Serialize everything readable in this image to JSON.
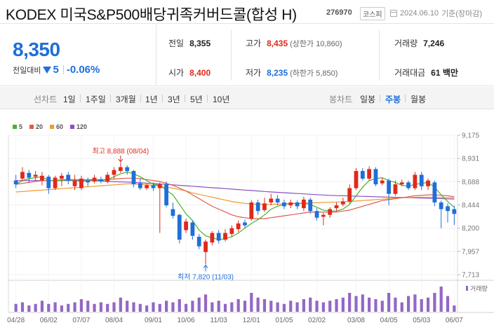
{
  "header": {
    "title": "KODEX 미국S&P500배당귀족커버드콜(합성 H)",
    "code": "276970",
    "market": "코스피",
    "date": "2024.06.10",
    "date_suffix": "기준(장마감)"
  },
  "price": {
    "current": "8,350",
    "change_label": "전일대비",
    "change": "5",
    "change_pct": "-0.06%"
  },
  "stats": {
    "prev_label": "전일",
    "prev": "8,355",
    "high_label": "고가",
    "high": "8,435",
    "upper_limit": "(상한가 10,860)",
    "volume_label": "거래량",
    "volume": "7,246",
    "open_label": "시가",
    "open": "8,400",
    "low_label": "저가",
    "low": "8,235",
    "lower_limit": "(하한가 5,850)",
    "amount_label": "거래대금",
    "amount": "61 백만"
  },
  "tabs": {
    "period_label": "선차트",
    "periods": [
      "1일",
      "1주일",
      "3개월",
      "1년",
      "3년",
      "5년",
      "10년"
    ],
    "candle_label": "봉차트",
    "candles": [
      "일봉",
      "주봉",
      "월봉"
    ],
    "active_candle": "주봉"
  },
  "legend": [
    {
      "name": "5",
      "color": "#4caf2e"
    },
    {
      "name": "20",
      "color": "#e05a4e"
    },
    {
      "name": "60",
      "color": "#f09a2e"
    },
    {
      "name": "120",
      "color": "#8a4fc6"
    }
  ],
  "chart_data": {
    "type": "candlestick",
    "interval": "weekly",
    "y_ticks": [
      "9,175",
      "8,931",
      "8,688",
      "8,444",
      "8,200",
      "7,957",
      "7,713"
    ],
    "ylim": [
      7713,
      9175
    ],
    "x_ticks": [
      "04/28",
      "06/02",
      "07/07",
      "08/04",
      "09/01",
      "10/06",
      "11/03",
      "12/01",
      "01/05",
      "02/02",
      "03/08",
      "04/05",
      "05/03",
      "06/07"
    ],
    "high_annotation": "최고 8,888 (08/04)",
    "low_annotation": "최저 7,820 (11/03)",
    "volume_label": "거래량",
    "up_color": "#e0291b",
    "down_color": "#1e6fd9",
    "candles": [
      {
        "o": 8700,
        "c": 8660,
        "h": 8760,
        "l": 8620
      },
      {
        "o": 8720,
        "c": 8790,
        "h": 8840,
        "l": 8690
      },
      {
        "o": 8780,
        "c": 8730,
        "h": 8810,
        "l": 8680
      },
      {
        "o": 8740,
        "c": 8760,
        "h": 8800,
        "l": 8700
      },
      {
        "o": 8700,
        "c": 8750,
        "h": 8790,
        "l": 8650
      },
      {
        "o": 8740,
        "c": 8620,
        "h": 8760,
        "l": 8560
      },
      {
        "o": 8620,
        "c": 8730,
        "h": 8750,
        "l": 8600
      },
      {
        "o": 8720,
        "c": 8750,
        "h": 8780,
        "l": 8640
      },
      {
        "o": 8760,
        "c": 8700,
        "h": 8790,
        "l": 8660
      },
      {
        "o": 8640,
        "c": 8700,
        "h": 8760,
        "l": 8600
      },
      {
        "o": 8620,
        "c": 8720,
        "h": 8750,
        "l": 8600
      },
      {
        "o": 8700,
        "c": 8680,
        "h": 8730,
        "l": 8640
      },
      {
        "o": 8690,
        "c": 8730,
        "h": 8760,
        "l": 8670
      },
      {
        "o": 8710,
        "c": 8690,
        "h": 8740,
        "l": 8670
      },
      {
        "o": 8690,
        "c": 8760,
        "h": 8790,
        "l": 8670
      },
      {
        "o": 8760,
        "c": 8810,
        "h": 8840,
        "l": 8720
      },
      {
        "o": 8800,
        "c": 8840,
        "h": 8888,
        "l": 8780
      },
      {
        "o": 8840,
        "c": 8800,
        "h": 8860,
        "l": 8760
      },
      {
        "o": 8800,
        "c": 8660,
        "h": 8810,
        "l": 8630
      },
      {
        "o": 8670,
        "c": 8620,
        "h": 8720,
        "l": 8600
      },
      {
        "o": 8620,
        "c": 8650,
        "h": 8670,
        "l": 8600
      },
      {
        "o": 8650,
        "c": 8620,
        "h": 8680,
        "l": 8590
      },
      {
        "o": 8620,
        "c": 8660,
        "h": 8680,
        "l": 8150
      },
      {
        "o": 8660,
        "c": 8440,
        "h": 8690,
        "l": 8420
      },
      {
        "o": 8400,
        "c": 8330,
        "h": 8470,
        "l": 8300
      },
      {
        "o": 8340,
        "c": 8080,
        "h": 8350,
        "l": 8040
      },
      {
        "o": 8180,
        "c": 8270,
        "h": 8300,
        "l": 8150
      },
      {
        "o": 8260,
        "c": 8120,
        "h": 8280,
        "l": 8080
      },
      {
        "o": 8110,
        "c": 8010,
        "h": 8140,
        "l": 7980
      },
      {
        "o": 7950,
        "c": 8060,
        "h": 8080,
        "l": 7820
      },
      {
        "o": 8050,
        "c": 8150,
        "h": 8170,
        "l": 8020
      },
      {
        "o": 8150,
        "c": 8070,
        "h": 8180,
        "l": 8040
      },
      {
        "o": 8080,
        "c": 8150,
        "h": 8190,
        "l": 8060
      },
      {
        "o": 8140,
        "c": 8200,
        "h": 8230,
        "l": 8110
      },
      {
        "o": 8190,
        "c": 8250,
        "h": 8280,
        "l": 8160
      },
      {
        "o": 8260,
        "c": 8230,
        "h": 8290,
        "l": 8200
      },
      {
        "o": 8300,
        "c": 8470,
        "h": 8490,
        "l": 8280
      },
      {
        "o": 8470,
        "c": 8380,
        "h": 8500,
        "l": 8340
      },
      {
        "o": 8390,
        "c": 8460,
        "h": 8520,
        "l": 8370
      },
      {
        "o": 8470,
        "c": 8510,
        "h": 8560,
        "l": 8440
      },
      {
        "o": 8510,
        "c": 8470,
        "h": 8550,
        "l": 8440
      },
      {
        "o": 8470,
        "c": 8430,
        "h": 8500,
        "l": 8400
      },
      {
        "o": 8440,
        "c": 8470,
        "h": 8500,
        "l": 8410
      },
      {
        "o": 8470,
        "c": 8430,
        "h": 8490,
        "l": 8400
      },
      {
        "o": 8410,
        "c": 8500,
        "h": 8530,
        "l": 8380
      },
      {
        "o": 8500,
        "c": 8380,
        "h": 8520,
        "l": 8350
      },
      {
        "o": 8380,
        "c": 8310,
        "h": 8410,
        "l": 8280
      },
      {
        "o": 8320,
        "c": 8340,
        "h": 8360,
        "l": 8230
      },
      {
        "o": 8340,
        "c": 8400,
        "h": 8420,
        "l": 8310
      },
      {
        "o": 8410,
        "c": 8440,
        "h": 8470,
        "l": 8380
      },
      {
        "o": 8450,
        "c": 8480,
        "h": 8520,
        "l": 8430
      },
      {
        "o": 8480,
        "c": 8620,
        "h": 8660,
        "l": 8460
      },
      {
        "o": 8620,
        "c": 8800,
        "h": 8830,
        "l": 8600
      },
      {
        "o": 8800,
        "c": 8720,
        "h": 8830,
        "l": 8700
      },
      {
        "o": 8720,
        "c": 8820,
        "h": 8850,
        "l": 8700
      },
      {
        "o": 8820,
        "c": 8660,
        "h": 8840,
        "l": 8640
      },
      {
        "o": 8670,
        "c": 8700,
        "h": 8730,
        "l": 8650
      },
      {
        "o": 8700,
        "c": 8560,
        "h": 8720,
        "l": 8440
      },
      {
        "o": 8560,
        "c": 8660,
        "h": 8700,
        "l": 8540
      },
      {
        "o": 8660,
        "c": 8680,
        "h": 8710,
        "l": 8640
      },
      {
        "o": 8680,
        "c": 8620,
        "h": 8700,
        "l": 8600
      },
      {
        "o": 8620,
        "c": 8760,
        "h": 8790,
        "l": 8600
      },
      {
        "o": 8760,
        "c": 8640,
        "h": 8790,
        "l": 8600
      },
      {
        "o": 8640,
        "c": 8700,
        "h": 8720,
        "l": 8600
      },
      {
        "o": 8680,
        "c": 8470,
        "h": 8700,
        "l": 8430
      },
      {
        "o": 8470,
        "c": 8400,
        "h": 8490,
        "l": 8200
      },
      {
        "o": 8430,
        "c": 8380,
        "h": 8460,
        "l": 8260
      },
      {
        "o": 8400,
        "c": 8350,
        "h": 8435,
        "l": 8235
      }
    ],
    "ma5": [
      8660,
      8700,
      8720,
      8730,
      8740,
      8700,
      8700,
      8700,
      8710,
      8700,
      8690,
      8700,
      8710,
      8700,
      8710,
      8740,
      8770,
      8790,
      8770,
      8740,
      8700,
      8660,
      8650,
      8600,
      8550,
      8450,
      8350,
      8280,
      8180,
      8120,
      8100,
      8080,
      8090,
      8110,
      8150,
      8200,
      8250,
      8290,
      8340,
      8400,
      8430,
      8450,
      8460,
      8460,
      8460,
      8450,
      8420,
      8390,
      8380,
      8380,
      8400,
      8450,
      8540,
      8630,
      8700,
      8720,
      8730,
      8700,
      8680,
      8650,
      8640,
      8660,
      8670,
      8680,
      8630,
      8550,
      8480,
      8420
    ],
    "ma20": [
      8660,
      8670,
      8680,
      8690,
      8700,
      8700,
      8700,
      8710,
      8710,
      8710,
      8710,
      8710,
      8710,
      8710,
      8710,
      8715,
      8720,
      8725,
      8725,
      8720,
      8710,
      8700,
      8690,
      8670,
      8650,
      8620,
      8590,
      8550,
      8510,
      8470,
      8430,
      8400,
      8370,
      8340,
      8320,
      8310,
      8300,
      8300,
      8300,
      8310,
      8320,
      8330,
      8340,
      8350,
      8360,
      8370,
      8370,
      8370,
      8370,
      8370,
      8380,
      8390,
      8410,
      8430,
      8450,
      8470,
      8490,
      8500,
      8510,
      8520,
      8530,
      8540,
      8545,
      8550,
      8550,
      8545,
      8540,
      8530
    ],
    "ma60": [
      8580,
      8585,
      8590,
      8595,
      8600,
      8605,
      8610,
      8615,
      8620,
      8625,
      8630,
      8635,
      8640,
      8645,
      8650,
      8655,
      8660,
      8665,
      8665,
      8660,
      8655,
      8650,
      8640,
      8630,
      8620,
      8605,
      8590,
      8570,
      8555,
      8540,
      8525,
      8510,
      8495,
      8480,
      8470,
      8460,
      8455,
      8450,
      8450,
      8450,
      8452,
      8455,
      8458,
      8460,
      8462,
      8465,
      8467,
      8470,
      8472,
      8475,
      8478,
      8480,
      8485,
      8490,
      8495,
      8500,
      8505,
      8510,
      8515,
      8520,
      8522,
      8524,
      8525,
      8525,
      8524,
      8522,
      8520,
      8518
    ],
    "ma120": [
      8700,
      8700,
      8700,
      8700,
      8700,
      8700,
      8700,
      8700,
      8700,
      8700,
      8700,
      8700,
      8698,
      8695,
      8690,
      8688,
      8686,
      8684,
      8680,
      8676,
      8672,
      8668,
      8664,
      8660,
      8655,
      8650,
      8645,
      8640,
      8635,
      8630,
      8625,
      8620,
      8615,
      8610,
      8605,
      8600,
      8595,
      8590,
      8585,
      8580,
      8576,
      8572,
      8568,
      8564,
      8560,
      8556,
      8552,
      8548,
      8545,
      8542,
      8540,
      8538,
      8536,
      8534,
      8532,
      8530,
      8528,
      8526,
      8524,
      8522,
      8520,
      8518,
      8516,
      8514,
      8512,
      8510,
      8508,
      8506
    ],
    "volumes": [
      5,
      6,
      4,
      5,
      7,
      5,
      6,
      4,
      5,
      6,
      8,
      7,
      5,
      6,
      5,
      6,
      9,
      7,
      6,
      5,
      4,
      6,
      5,
      7,
      6,
      8,
      5,
      7,
      9,
      11,
      6,
      7,
      5,
      6,
      8,
      7,
      12,
      9,
      8,
      7,
      6,
      5,
      7,
      6,
      8,
      9,
      7,
      6,
      7,
      8,
      9,
      12,
      10,
      11,
      9,
      8,
      7,
      12,
      9,
      6,
      10,
      11,
      8,
      9,
      12,
      16,
      10,
      4
    ]
  }
}
